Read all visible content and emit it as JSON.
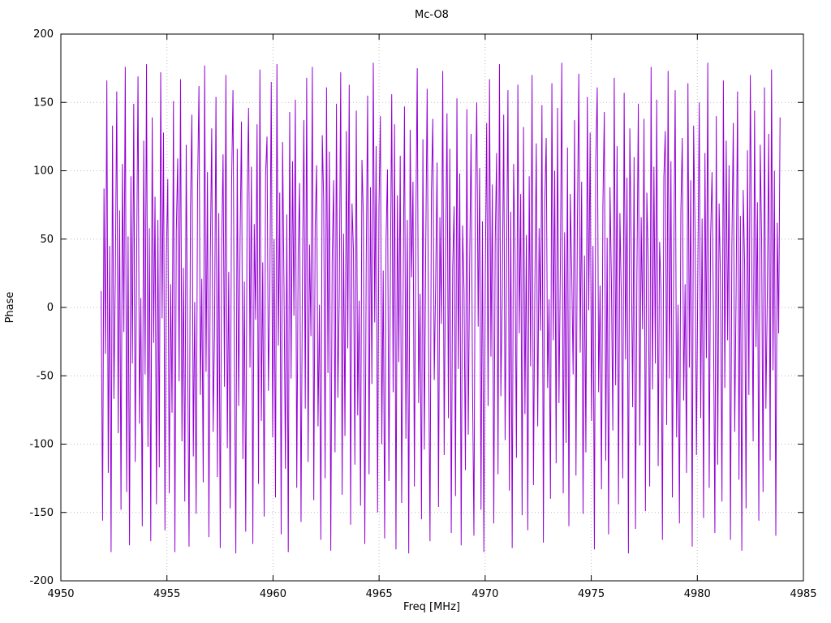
{
  "chart_data": {
    "type": "line",
    "title": "Mc-O8",
    "xlabel": "Freq [MHz]",
    "ylabel": "Phase",
    "xlim": [
      4950,
      4985
    ],
    "ylim": [
      -200,
      200
    ],
    "xticks": [
      4950,
      4955,
      4960,
      4965,
      4970,
      4975,
      4980,
      4985
    ],
    "yticks": [
      -200,
      -150,
      -100,
      -50,
      0,
      50,
      100,
      150,
      200
    ],
    "grid": true,
    "legend": "none",
    "line_color": "#9400d3",
    "series": [
      {
        "name": "phase",
        "x_start": 4951.9,
        "x_end": 4983.9,
        "y": [
          12,
          -156,
          87,
          -34,
          166,
          -121,
          45,
          -179,
          133,
          -67,
          24,
          158,
          -92,
          71,
          -148,
          105,
          -18,
          176,
          -135,
          52,
          -174,
          96,
          -41,
          149,
          -113,
          31,
          169,
          -85,
          7,
          -160,
          122,
          -49,
          178,
          -102,
          58,
          -171,
          139,
          -26,
          81,
          -144,
          64,
          -117,
          172,
          -8,
          128,
          -163,
          38,
          94,
          -136,
          17,
          -77,
          151,
          -179,
          55,
          109,
          -54,
          167,
          -98,
          29,
          -142,
          119,
          -32,
          -175,
          73,
          141,
          -109,
          4,
          -151,
          86,
          162,
          -64,
          21,
          -128,
          177,
          -47,
          99,
          -168,
          36,
          131,
          -91,
          -15,
          154,
          -124,
          69,
          -176,
          43,
          112,
          -58,
          170,
          -103,
          26,
          -147,
          89,
          159,
          -37,
          -180,
          116,
          -72,
          48,
          136,
          -111,
          19,
          -164,
          79,
          146,
          -44,
          103,
          -173,
          61,
          -9,
          134,
          -129,
          174,
          -83,
          33,
          -153,
          97,
          125,
          -61,
          11,
          165,
          -95,
          50,
          -139,
          178,
          -28,
          84,
          -166,
          121,
          14,
          -118,
          68,
          -179,
          143,
          -52,
          107,
          -6,
          152,
          -132,
          39,
          91,
          -157,
          23,
          137,
          -74,
          168,
          -113,
          46,
          -21,
          176,
          -141,
          59,
          104,
          -87,
          2,
          -170,
          126,
          78,
          -125,
          161,
          -48,
          114,
          -178,
          35,
          93,
          -106,
          149,
          -66,
          8,
          172,
          -137,
          54,
          -94,
          129,
          -30,
          163,
          -159,
          76,
          41,
          -115,
          144,
          -79,
          5,
          -145,
          108,
          67,
          -173,
          32,
          155,
          -122,
          88,
          -56,
          179,
          -11,
          118,
          -150,
          73,
          140,
          -100,
          27,
          -169,
          49,
          101,
          -127,
          16,
          156,
          -62,
          134,
          -177,
          82,
          -40,
          111,
          -143,
          3,
          147,
          -96,
          64,
          -180,
          130,
          22,
          92,
          -131,
          57,
          175,
          -70,
          10,
          -155,
          123,
          -104,
          44,
          160,
          -25,
          -171,
          85,
          138,
          -53,
          18,
          106,
          -146,
          66,
          -12,
          173,
          -108,
          37,
          142,
          -81,
          116,
          -165,
          29,
          74,
          -138,
          153,
          -45,
          98,
          -174,
          60,
          13,
          -119,
          145,
          -93,
          34,
          127,
          -56,
          -167,
          80,
          150,
          -14,
          102,
          -148,
          63,
          -179,
          21,
          135,
          -72,
          167,
          -36,
          90,
          -158,
          47,
          113,
          -122,
          178,
          -65,
          9,
          141,
          -97,
          28,
          159,
          -134,
          70,
          -176,
          105,
          40,
          -110,
          163,
          -19,
          83,
          -152,
          132,
          -78,
          53,
          -163,
          96,
          -43,
          170,
          -130,
          15,
          120,
          -87,
          58,
          -17,
          148,
          -172,
          77,
          124,
          -59,
          6,
          -140,
          164,
          -24,
          100,
          -114,
          146,
          -70,
          31,
          179,
          -136,
          55,
          -99,
          117,
          -160,
          83,
          26,
          -49,
          137,
          -123,
          62,
          171,
          -33,
          92,
          -151,
          38,
          -106,
          154,
          -2,
          128,
          -83,
          45,
          -177,
          109,
          161,
          -62,
          16,
          -133,
          75,
          143,
          -112,
          51,
          -166,
          88,
          20,
          -90,
          168,
          -57,
          118,
          -144,
          69,
          7,
          -125,
          157,
          -38,
          95,
          -180,
          131,
          42,
          -73,
          110,
          -162,
          25,
          149,
          -101,
          66,
          -16,
          138,
          -149,
          84,
          30,
          -131,
          176,
          -60,
          103,
          -41,
          152,
          -116,
          48,
          13,
          -170,
          95,
          129,
          -86,
          173,
          -52,
          107,
          -139,
          36,
          159,
          -95,
          2,
          -158,
          70,
          124,
          -68,
          17,
          -121,
          164,
          -44,
          93,
          -175,
          133,
          56,
          -108,
          28,
          150,
          -81,
          65,
          -154,
          113,
          -37,
          179,
          -132,
          52,
          99,
          -8,
          -165,
          140,
          -115,
          76,
          18,
          -142,
          166,
          -59,
          122,
          -24,
          104,
          -170,
          45,
          135,
          -91,
          12,
          158,
          -126,
          67,
          -178,
          86,
          31,
          -147,
          115,
          -64,
          170,
          39,
          -98,
          144,
          -29,
          77,
          -156,
          119,
          50,
          -135,
          161,
          -74,
          8,
          127,
          -112,
          174,
          -46,
          100,
          -167,
          62,
          -19,
          139
        ]
      }
    ]
  }
}
